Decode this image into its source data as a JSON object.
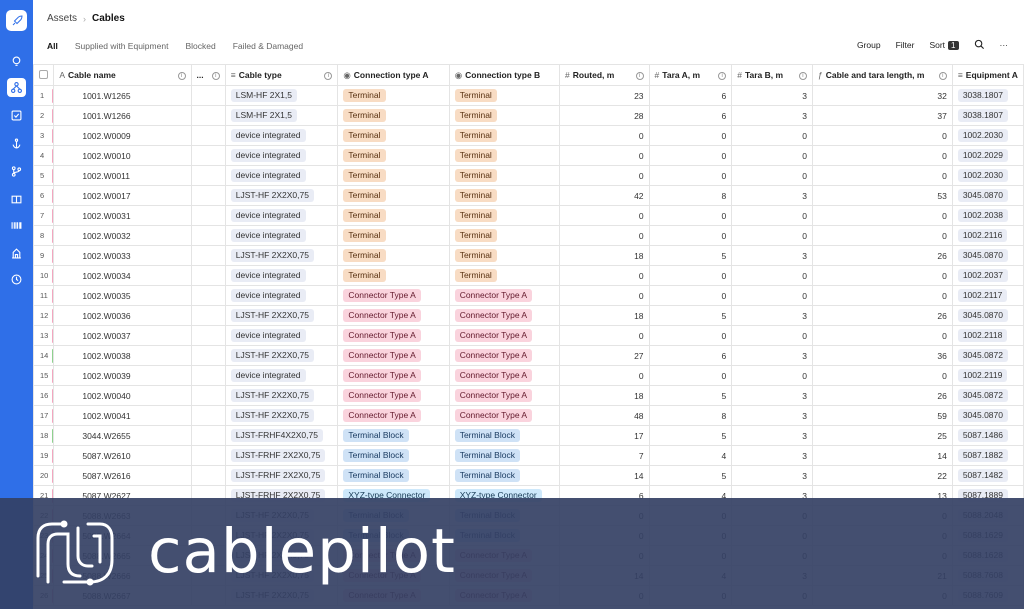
{
  "breadcrumb": {
    "parent": "Assets",
    "current": "Cables"
  },
  "tabs": [
    {
      "label": "All",
      "active": true
    },
    {
      "label": "Supplied with Equipment",
      "active": false
    },
    {
      "label": "Blocked",
      "active": false
    },
    {
      "label": "Failed & Damaged",
      "active": false
    }
  ],
  "toolbar": {
    "group": "Group",
    "filter": "Filter",
    "sort": "Sort",
    "sort_count": "1",
    "more": "···"
  },
  "columns": {
    "dots": "...",
    "cable_name": "Cable name",
    "cable_type": "Cable type",
    "conn_a": "Connection type A",
    "conn_b": "Connection type B",
    "routed": "Routed, m",
    "tara_a": "Tara A, m",
    "tara_b": "Tara B, m",
    "total": "Cable and tara length, m",
    "equipment": "Equipment A"
  },
  "colors": {
    "sidebar": "#2f6fe8",
    "mark_pink": "#f3a6bf",
    "mark_green": "#8fd18f",
    "mark_gray": "#d0d0d0"
  },
  "rows": [
    {
      "n": "1",
      "mark": "#f3a6bf",
      "name": "1001.W1265",
      "type": "LSM-HF 2X1,5",
      "a": "Terminal",
      "b": "Terminal",
      "routed": "23",
      "ta": "6",
      "tb": "3",
      "total": "32",
      "eq": "3038.1807"
    },
    {
      "n": "2",
      "mark": "#f3a6bf",
      "name": "1001.W1266",
      "type": "LSM-HF 2X1,5",
      "a": "Terminal",
      "b": "Terminal",
      "routed": "28",
      "ta": "6",
      "tb": "3",
      "total": "37",
      "eq": "3038.1807"
    },
    {
      "n": "3",
      "mark": "#f3a6bf",
      "name": "1002.W0009",
      "type": "device integrated",
      "a": "Terminal",
      "b": "Terminal",
      "routed": "0",
      "ta": "0",
      "tb": "0",
      "total": "0",
      "eq": "1002.2030"
    },
    {
      "n": "4",
      "mark": "#f3a6bf",
      "name": "1002.W0010",
      "type": "device integrated",
      "a": "Terminal",
      "b": "Terminal",
      "routed": "0",
      "ta": "0",
      "tb": "0",
      "total": "0",
      "eq": "1002.2029"
    },
    {
      "n": "5",
      "mark": "#f3a6bf",
      "name": "1002.W0011",
      "type": "device integrated",
      "a": "Terminal",
      "b": "Terminal",
      "routed": "0",
      "ta": "0",
      "tb": "0",
      "total": "0",
      "eq": "1002.2030"
    },
    {
      "n": "6",
      "mark": "#f3a6bf",
      "name": "1002.W0017",
      "type": "LJST-HF 2X2X0,75",
      "a": "Terminal",
      "b": "Terminal",
      "routed": "42",
      "ta": "8",
      "tb": "3",
      "total": "53",
      "eq": "3045.0870"
    },
    {
      "n": "7",
      "mark": "#f3a6bf",
      "name": "1002.W0031",
      "type": "device integrated",
      "a": "Terminal",
      "b": "Terminal",
      "routed": "0",
      "ta": "0",
      "tb": "0",
      "total": "0",
      "eq": "1002.2038"
    },
    {
      "n": "8",
      "mark": "#f3a6bf",
      "name": "1002.W0032",
      "type": "device integrated",
      "a": "Terminal",
      "b": "Terminal",
      "routed": "0",
      "ta": "0",
      "tb": "0",
      "total": "0",
      "eq": "1002.2116"
    },
    {
      "n": "9",
      "mark": "#f3a6bf",
      "name": "1002.W0033",
      "type": "LJST-HF 2X2X0,75",
      "a": "Terminal",
      "b": "Terminal",
      "routed": "18",
      "ta": "5",
      "tb": "3",
      "total": "26",
      "eq": "3045.0870"
    },
    {
      "n": "10",
      "mark": "#f3a6bf",
      "name": "1002.W0034",
      "type": "device integrated",
      "a": "Terminal",
      "b": "Terminal",
      "routed": "0",
      "ta": "0",
      "tb": "0",
      "total": "0",
      "eq": "1002.2037"
    },
    {
      "n": "11",
      "mark": "#f3a6bf",
      "name": "1002.W0035",
      "type": "device integrated",
      "a": "Connector Type A",
      "b": "Connector Type A",
      "routed": "0",
      "ta": "0",
      "tb": "0",
      "total": "0",
      "eq": "1002.2117"
    },
    {
      "n": "12",
      "mark": "#f3a6bf",
      "name": "1002.W0036",
      "type": "LJST-HF 2X2X0,75",
      "a": "Connector Type A",
      "b": "Connector Type A",
      "routed": "18",
      "ta": "5",
      "tb": "3",
      "total": "26",
      "eq": "3045.0870"
    },
    {
      "n": "13",
      "mark": "#f3a6bf",
      "name": "1002.W0037",
      "type": "device integrated",
      "a": "Connector Type A",
      "b": "Connector Type A",
      "routed": "0",
      "ta": "0",
      "tb": "0",
      "total": "0",
      "eq": "1002.2118"
    },
    {
      "n": "14",
      "mark": "#8fd18f",
      "name": "1002.W0038",
      "type": "LJST-HF 2X2X0,75",
      "a": "Connector Type A",
      "b": "Connector Type A",
      "routed": "27",
      "ta": "6",
      "tb": "3",
      "total": "36",
      "eq": "3045.0872"
    },
    {
      "n": "15",
      "mark": "#f3a6bf",
      "name": "1002.W0039",
      "type": "device integrated",
      "a": "Connector Type A",
      "b": "Connector Type A",
      "routed": "0",
      "ta": "0",
      "tb": "0",
      "total": "0",
      "eq": "1002.2119"
    },
    {
      "n": "16",
      "mark": "#f3a6bf",
      "name": "1002.W0040",
      "type": "LJST-HF 2X2X0,75",
      "a": "Connector Type A",
      "b": "Connector Type A",
      "routed": "18",
      "ta": "5",
      "tb": "3",
      "total": "26",
      "eq": "3045.0872"
    },
    {
      "n": "17",
      "mark": "#f3a6bf",
      "name": "1002.W0041",
      "type": "LJST-HF 2X2X0,75",
      "a": "Connector Type A",
      "b": "Connector Type A",
      "routed": "48",
      "ta": "8",
      "tb": "3",
      "total": "59",
      "eq": "3045.0870"
    },
    {
      "n": "18",
      "mark": "#8fd18f",
      "name": "3044.W2655",
      "type": "LJST-FRHF4X2X0,75",
      "a": "Terminal Block",
      "b": "Terminal Block",
      "routed": "17",
      "ta": "5",
      "tb": "3",
      "total": "25",
      "eq": "5087.1486"
    },
    {
      "n": "19",
      "mark": "#f3a6bf",
      "name": "5087.W2610",
      "type": "LJST-FRHF 2X2X0,75",
      "a": "Terminal Block",
      "b": "Terminal Block",
      "routed": "7",
      "ta": "4",
      "tb": "3",
      "total": "14",
      "eq": "5087.1882"
    },
    {
      "n": "20",
      "mark": "#f3a6bf",
      "name": "5087.W2616",
      "type": "LJST-FRHF 2X2X0,75",
      "a": "Terminal Block",
      "b": "Terminal Block",
      "routed": "14",
      "ta": "5",
      "tb": "3",
      "total": "22",
      "eq": "5087.1482"
    },
    {
      "n": "21",
      "mark": "#f3a6bf",
      "name": "5087.W2627",
      "type": "LJST-FRHF 2X2X0,75",
      "a": "XYZ-type Connector",
      "b": "XYZ-type Connector",
      "routed": "6",
      "ta": "4",
      "tb": "3",
      "total": "13",
      "eq": "5087.1889"
    },
    {
      "n": "22",
      "mark": "#f3a6bf",
      "name": "5088.W2663",
      "type": "LJST-HF 2X2X0,75",
      "a": "Terminal Block",
      "b": "Terminal Block",
      "routed": "0",
      "ta": "0",
      "tb": "0",
      "total": "0",
      "eq": "5088.2048"
    },
    {
      "n": "23",
      "mark": "#f3a6bf",
      "name": "5088.W2664",
      "type": "LJST-HF 2X2X0,75",
      "a": "Terminal Block",
      "b": "Terminal Block",
      "routed": "0",
      "ta": "0",
      "tb": "0",
      "total": "0",
      "eq": "5088.1629"
    },
    {
      "n": "24",
      "mark": "#f3a6bf",
      "name": "5088.W2665",
      "type": "LJST-HF 2X2X0,75",
      "a": "Connector Type A",
      "b": "Connector Type A",
      "routed": "0",
      "ta": "0",
      "tb": "0",
      "total": "0",
      "eq": "5088.1628"
    },
    {
      "n": "25",
      "mark": "#f3a6bf",
      "name": "5088.W2666",
      "type": "LJST-HF 2X2X0,75",
      "a": "Connector Type A",
      "b": "Connector Type A",
      "routed": "14",
      "ta": "4",
      "tb": "3",
      "total": "21",
      "eq": "5088.7608"
    },
    {
      "n": "26",
      "mark": "#f3a6bf",
      "name": "5088.W2667",
      "type": "LJST-HF 2X2X0,75",
      "a": "Connector Type A",
      "b": "Connector Type A",
      "routed": "0",
      "ta": "0",
      "tb": "0",
      "total": "0",
      "eq": "5088.7609"
    }
  ],
  "banner": {
    "brand": "cablepilot"
  }
}
